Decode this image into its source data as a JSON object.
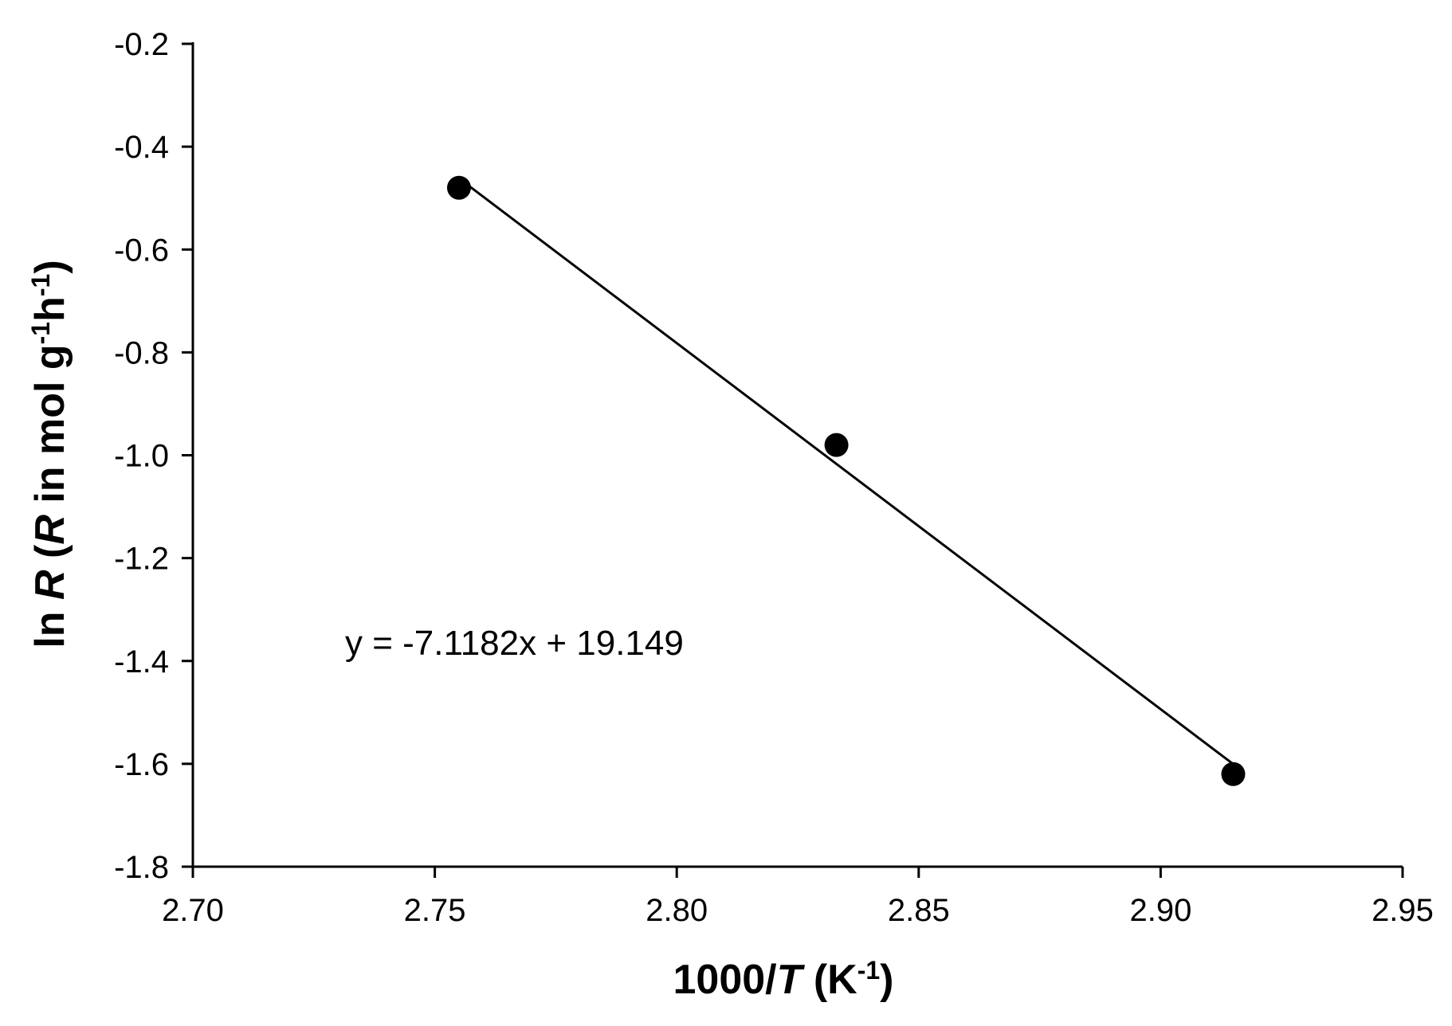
{
  "chart_data": {
    "type": "scatter",
    "points": [
      {
        "x": 2.755,
        "y": -0.48
      },
      {
        "x": 2.833,
        "y": -0.98
      },
      {
        "x": 2.915,
        "y": -1.62
      }
    ],
    "trendline": {
      "slope": -7.1182,
      "intercept": 19.149,
      "x_range": [
        2.755,
        2.915
      ]
    },
    "equation": "y = -7.1182x + 19.149",
    "xlabel": {
      "main": "1000/",
      "var": "T",
      "unit_open": " (K",
      "sup": "-1",
      "unit_close": ")"
    },
    "ylabel": {
      "main": "ln ",
      "var1": "R",
      "paren_open": " (",
      "var2": "R",
      "unit1": " in mol g",
      "sup1": "-1",
      "unit2": "h",
      "sup2": "-1",
      "paren_close": ")"
    },
    "xlim": [
      2.7,
      2.95
    ],
    "ylim": [
      -1.8,
      -0.2
    ],
    "xticks": [
      "2.70",
      "2.75",
      "2.80",
      "2.85",
      "2.90",
      "2.95"
    ],
    "yticks": [
      "-0.2",
      "-0.4",
      "-0.6",
      "-0.8",
      "-1.0",
      "-1.2",
      "-1.4",
      "-1.6",
      "-1.8"
    ],
    "grid": false,
    "colors": {
      "marker": "#000000",
      "line": "#000000",
      "axis": "#000000"
    }
  }
}
